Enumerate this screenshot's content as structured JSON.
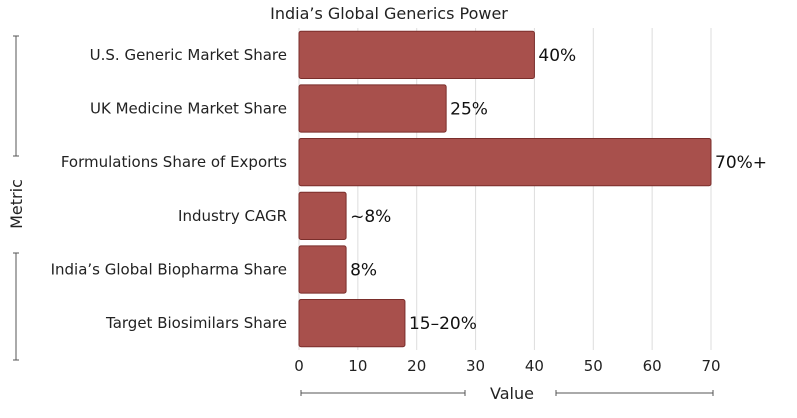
{
  "chart_data": {
    "type": "bar",
    "orientation": "horizontal",
    "title": "India’s Global Generics Power",
    "xlabel": "Value",
    "ylabel": "Metric",
    "categories": [
      "U.S. Generic Market Share",
      "UK Medicine Market Share",
      "Formulations Share of Exports",
      "Industry CAGR",
      "India’s Global Biopharma Share",
      "Target Biosimilars Share"
    ],
    "values": [
      40,
      25,
      70,
      8,
      8,
      18
    ],
    "data_labels": [
      "40%",
      "25%",
      "70%+",
      "~8%",
      "8%",
      "15–20%"
    ],
    "xlim": [
      0,
      70
    ],
    "xticks": [
      0,
      10,
      20,
      30,
      40,
      50,
      60,
      70
    ],
    "grid": "vertical",
    "bar_color": "#a8504c",
    "bar_edge_color": "#7a2e2b",
    "legend": "none"
  }
}
